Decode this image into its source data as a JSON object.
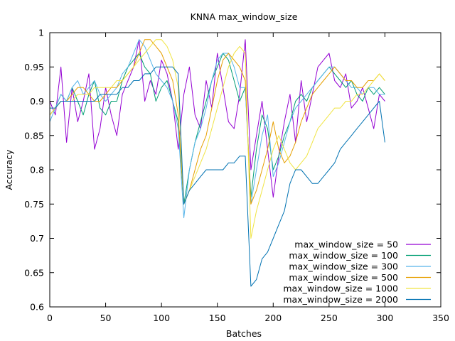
{
  "chart_data": {
    "type": "line",
    "title": "KNNA max_window_size",
    "xlabel": "Batches",
    "ylabel": "Accuracy",
    "xlim": [
      0,
      350
    ],
    "ylim": [
      0.6,
      1.0
    ],
    "xticks": [
      0,
      50,
      100,
      150,
      200,
      250,
      300,
      350
    ],
    "yticks": [
      0.6,
      0.65,
      0.7,
      0.75,
      0.8,
      0.85,
      0.9,
      0.95,
      1.0
    ],
    "xtick_labels": [
      "0",
      "50",
      "100",
      "150",
      "200",
      "250",
      "300",
      "350"
    ],
    "ytick_labels": [
      "0.6",
      "0.65",
      "0.7",
      "0.75",
      "0.8",
      "0.85",
      "0.9",
      "0.95",
      "1"
    ],
    "grid": false,
    "legend_position": "bottom-right",
    "series": [
      {
        "name": "max_window_size = 50",
        "color": "#9400d3",
        "x": [
          0,
          5,
          10,
          15,
          20,
          25,
          30,
          35,
          40,
          45,
          50,
          55,
          60,
          65,
          70,
          75,
          80,
          85,
          90,
          95,
          100,
          105,
          110,
          115,
          120,
          125,
          130,
          135,
          140,
          145,
          150,
          155,
          160,
          165,
          170,
          175,
          180,
          185,
          190,
          195,
          200,
          205,
          210,
          215,
          220,
          225,
          230,
          235,
          240,
          245,
          250,
          255,
          260,
          265,
          270,
          275,
          280,
          285,
          290,
          295,
          300
        ],
        "y": [
          0.9,
          0.88,
          0.95,
          0.84,
          0.92,
          0.87,
          0.9,
          0.94,
          0.83,
          0.86,
          0.92,
          0.88,
          0.85,
          0.91,
          0.93,
          0.95,
          0.99,
          0.9,
          0.93,
          0.91,
          0.96,
          0.94,
          0.9,
          0.83,
          0.91,
          0.95,
          0.88,
          0.86,
          0.93,
          0.89,
          0.97,
          0.92,
          0.87,
          0.86,
          0.91,
          0.99,
          0.8,
          0.85,
          0.9,
          0.83,
          0.76,
          0.82,
          0.87,
          0.91,
          0.84,
          0.93,
          0.87,
          0.91,
          0.95,
          0.96,
          0.97,
          0.93,
          0.92,
          0.94,
          0.89,
          0.9,
          0.92,
          0.89,
          0.86,
          0.91,
          0.9
        ]
      },
      {
        "name": "max_window_size = 100",
        "color": "#009e73",
        "x": [
          0,
          5,
          10,
          15,
          20,
          25,
          30,
          35,
          40,
          45,
          50,
          55,
          60,
          65,
          70,
          75,
          80,
          85,
          90,
          95,
          100,
          105,
          110,
          115,
          120,
          125,
          130,
          135,
          140,
          145,
          150,
          155,
          160,
          165,
          170,
          175,
          180,
          185,
          190,
          195,
          200,
          205,
          210,
          215,
          220,
          225,
          230,
          235,
          240,
          245,
          250,
          255,
          260,
          265,
          270,
          275,
          280,
          285,
          290,
          295,
          300
        ],
        "y": [
          0.88,
          0.89,
          0.91,
          0.9,
          0.92,
          0.9,
          0.88,
          0.91,
          0.93,
          0.89,
          0.88,
          0.9,
          0.9,
          0.93,
          0.95,
          0.96,
          0.97,
          0.95,
          0.94,
          0.9,
          0.92,
          0.93,
          0.9,
          0.87,
          0.75,
          0.8,
          0.84,
          0.87,
          0.9,
          0.93,
          0.95,
          0.97,
          0.96,
          0.93,
          0.9,
          0.92,
          0.76,
          0.83,
          0.88,
          0.86,
          0.8,
          0.82,
          0.85,
          0.87,
          0.9,
          0.91,
          0.9,
          0.92,
          0.93,
          0.94,
          0.95,
          0.94,
          0.93,
          0.92,
          0.93,
          0.91,
          0.9,
          0.92,
          0.91,
          0.92,
          0.91
        ]
      },
      {
        "name": "max_window_size = 300",
        "color": "#56b4e9",
        "x": [
          0,
          5,
          10,
          15,
          20,
          25,
          30,
          35,
          40,
          45,
          50,
          55,
          60,
          65,
          70,
          75,
          80,
          85,
          90,
          95,
          100,
          105,
          110,
          115,
          120,
          125,
          130,
          135,
          140,
          145,
          150,
          155,
          160,
          165,
          170,
          175,
          180,
          185,
          190,
          195,
          200,
          205,
          210,
          215,
          220,
          225,
          230,
          235,
          240,
          245,
          250,
          255,
          260,
          265,
          270,
          275,
          280,
          285,
          290,
          295,
          300
        ],
        "y": [
          0.87,
          0.89,
          0.91,
          0.9,
          0.92,
          0.93,
          0.91,
          0.92,
          0.93,
          0.91,
          0.9,
          0.91,
          0.92,
          0.94,
          0.95,
          0.97,
          0.99,
          0.98,
          0.96,
          0.94,
          0.93,
          0.92,
          0.9,
          0.86,
          0.73,
          0.8,
          0.84,
          0.86,
          0.89,
          0.93,
          0.96,
          0.97,
          0.97,
          0.95,
          0.92,
          0.92,
          0.75,
          0.8,
          0.85,
          0.88,
          0.79,
          0.81,
          0.84,
          0.87,
          0.89,
          0.9,
          0.91,
          0.92,
          0.93,
          0.94,
          0.95,
          0.95,
          0.94,
          0.93,
          0.92,
          0.92,
          0.91,
          0.92,
          0.92,
          0.91,
          0.91
        ]
      },
      {
        "name": "max_window_size = 500",
        "color": "#e69f00",
        "x": [
          0,
          5,
          10,
          15,
          20,
          25,
          30,
          35,
          40,
          45,
          50,
          55,
          60,
          65,
          70,
          75,
          80,
          85,
          90,
          95,
          100,
          105,
          110,
          115,
          120,
          125,
          130,
          135,
          140,
          145,
          150,
          155,
          160,
          165,
          170,
          175,
          180,
          185,
          190,
          195,
          200,
          205,
          210,
          215,
          220,
          225,
          230,
          235,
          240,
          245,
          250,
          255,
          260,
          265,
          270,
          275,
          280,
          285,
          290,
          295,
          300
        ],
        "y": [
          0.88,
          0.89,
          0.9,
          0.9,
          0.91,
          0.92,
          0.92,
          0.91,
          0.9,
          0.9,
          0.91,
          0.92,
          0.92,
          0.93,
          0.94,
          0.95,
          0.97,
          0.99,
          0.99,
          0.98,
          0.97,
          0.95,
          0.93,
          0.88,
          0.75,
          0.77,
          0.8,
          0.83,
          0.85,
          0.89,
          0.93,
          0.96,
          0.97,
          0.96,
          0.95,
          0.93,
          0.75,
          0.77,
          0.8,
          0.83,
          0.87,
          0.83,
          0.81,
          0.82,
          0.84,
          0.87,
          0.89,
          0.91,
          0.92,
          0.93,
          0.94,
          0.95,
          0.94,
          0.93,
          0.93,
          0.92,
          0.92,
          0.93,
          0.93,
          0.94,
          0.93
        ]
      },
      {
        "name": "max_window_size = 1000",
        "color": "#f0e442",
        "x": [
          0,
          5,
          10,
          15,
          20,
          25,
          30,
          35,
          40,
          45,
          50,
          55,
          60,
          65,
          70,
          75,
          80,
          85,
          90,
          95,
          100,
          105,
          110,
          115,
          120,
          125,
          130,
          135,
          140,
          145,
          150,
          155,
          160,
          165,
          170,
          175,
          180,
          185,
          190,
          195,
          200,
          205,
          210,
          215,
          220,
          225,
          230,
          235,
          240,
          245,
          250,
          255,
          260,
          265,
          270,
          275,
          280,
          285,
          290,
          295,
          300
        ],
        "y": [
          0.88,
          0.89,
          0.9,
          0.9,
          0.9,
          0.91,
          0.91,
          0.91,
          0.92,
          0.92,
          0.92,
          0.92,
          0.93,
          0.93,
          0.94,
          0.95,
          0.96,
          0.97,
          0.98,
          0.99,
          0.99,
          0.98,
          0.96,
          0.92,
          0.75,
          0.77,
          0.79,
          0.81,
          0.83,
          0.86,
          0.89,
          0.92,
          0.95,
          0.97,
          0.98,
          0.97,
          0.7,
          0.74,
          0.77,
          0.8,
          0.83,
          0.85,
          0.83,
          0.81,
          0.8,
          0.81,
          0.82,
          0.84,
          0.86,
          0.87,
          0.88,
          0.89,
          0.89,
          0.9,
          0.9,
          0.91,
          0.91,
          0.92,
          0.93,
          0.94,
          0.93
        ]
      },
      {
        "name": "max_window_size = 2000",
        "color": "#0072b2",
        "x": [
          0,
          5,
          10,
          15,
          20,
          25,
          30,
          35,
          40,
          45,
          50,
          55,
          60,
          65,
          70,
          75,
          80,
          85,
          90,
          95,
          100,
          105,
          110,
          115,
          120,
          125,
          130,
          135,
          140,
          145,
          150,
          155,
          160,
          165,
          170,
          175,
          180,
          185,
          190,
          195,
          200,
          205,
          210,
          215,
          220,
          225,
          230,
          235,
          240,
          245,
          250,
          255,
          260,
          265,
          270,
          275,
          280,
          285,
          290,
          295,
          300
        ],
        "y": [
          0.89,
          0.89,
          0.9,
          0.9,
          0.9,
          0.9,
          0.9,
          0.9,
          0.9,
          0.91,
          0.91,
          0.91,
          0.91,
          0.92,
          0.92,
          0.93,
          0.93,
          0.94,
          0.94,
          0.95,
          0.95,
          0.95,
          0.95,
          0.94,
          0.75,
          0.77,
          0.78,
          0.79,
          0.8,
          0.8,
          0.8,
          0.8,
          0.81,
          0.81,
          0.82,
          0.82,
          0.63,
          0.64,
          0.67,
          0.68,
          0.7,
          0.72,
          0.74,
          0.78,
          0.8,
          0.8,
          0.79,
          0.78,
          0.78,
          0.79,
          0.8,
          0.81,
          0.83,
          0.84,
          0.85,
          0.86,
          0.87,
          0.88,
          0.89,
          0.9,
          0.84
        ]
      }
    ]
  }
}
